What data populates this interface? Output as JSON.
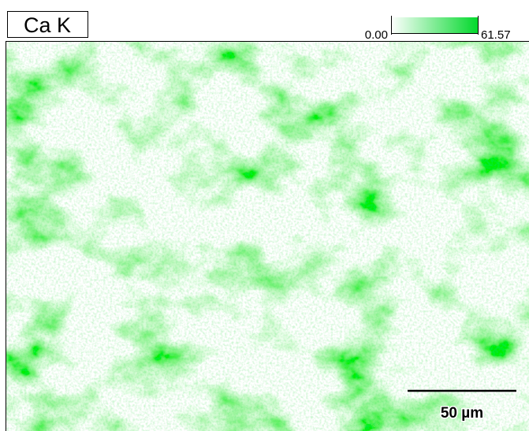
{
  "element_label": "Ca K",
  "color_scale": {
    "min_label": "0.00",
    "max_label": "61.57"
  },
  "scale_bar": {
    "label": "50 µm"
  }
}
